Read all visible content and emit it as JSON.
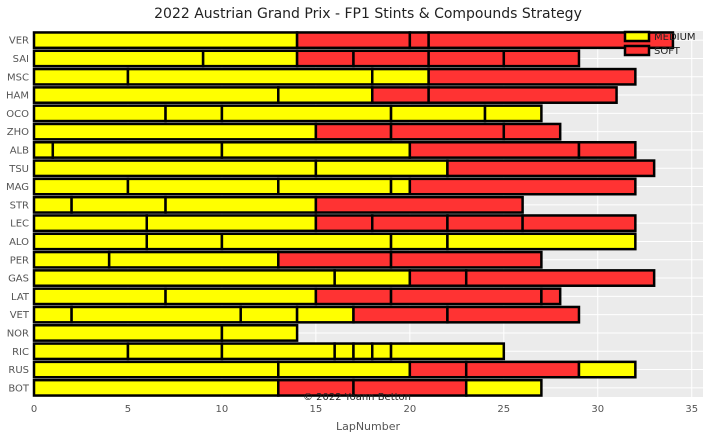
{
  "chart_data": {
    "type": "bar",
    "orientation": "horizontal-stacked",
    "title": "2022 Austrian Grand Prix - FP1 Stints & Compounds Strategy",
    "xlabel": "LapNumber",
    "ylabel": "",
    "xlim": [
      0,
      35.6
    ],
    "xticks": [
      0,
      5,
      10,
      15,
      20,
      25,
      30,
      35
    ],
    "grid": true,
    "legend": {
      "position": "top-right",
      "entries": [
        {
          "label": "MEDIUM",
          "color": "#ffff00"
        },
        {
          "label": "SOFT",
          "color": "#ff3333"
        }
      ]
    },
    "annotation": "© 2022 Yoann Betton",
    "compound_colors": {
      "MEDIUM": "#ffff00",
      "SOFT": "#ff3333"
    },
    "drivers": [
      {
        "name": "VER",
        "stints": [
          {
            "compound": "MEDIUM",
            "laps": 14
          },
          {
            "compound": "SOFT",
            "laps": 6
          },
          {
            "compound": "SOFT",
            "laps": 1
          },
          {
            "compound": "SOFT",
            "laps": 13
          }
        ]
      },
      {
        "name": "SAI",
        "stints": [
          {
            "compound": "MEDIUM",
            "laps": 9
          },
          {
            "compound": "MEDIUM",
            "laps": 5
          },
          {
            "compound": "SOFT",
            "laps": 3
          },
          {
            "compound": "SOFT",
            "laps": 4
          },
          {
            "compound": "SOFT",
            "laps": 4
          },
          {
            "compound": "SOFT",
            "laps": 4
          }
        ]
      },
      {
        "name": "MSC",
        "stints": [
          {
            "compound": "MEDIUM",
            "laps": 5
          },
          {
            "compound": "MEDIUM",
            "laps": 13
          },
          {
            "compound": "MEDIUM",
            "laps": 3
          },
          {
            "compound": "SOFT",
            "laps": 11
          }
        ]
      },
      {
        "name": "HAM",
        "stints": [
          {
            "compound": "MEDIUM",
            "laps": 13
          },
          {
            "compound": "MEDIUM",
            "laps": 5
          },
          {
            "compound": "SOFT",
            "laps": 3
          },
          {
            "compound": "SOFT",
            "laps": 10
          }
        ]
      },
      {
        "name": "OCO",
        "stints": [
          {
            "compound": "MEDIUM",
            "laps": 7
          },
          {
            "compound": "MEDIUM",
            "laps": 3
          },
          {
            "compound": "MEDIUM",
            "laps": 9
          },
          {
            "compound": "MEDIUM",
            "laps": 5
          },
          {
            "compound": "MEDIUM",
            "laps": 3
          }
        ]
      },
      {
        "name": "ZHO",
        "stints": [
          {
            "compound": "MEDIUM",
            "laps": 15
          },
          {
            "compound": "SOFT",
            "laps": 4
          },
          {
            "compound": "SOFT",
            "laps": 6
          },
          {
            "compound": "SOFT",
            "laps": 3
          }
        ]
      },
      {
        "name": "ALB",
        "stints": [
          {
            "compound": "MEDIUM",
            "laps": 1
          },
          {
            "compound": "MEDIUM",
            "laps": 9
          },
          {
            "compound": "MEDIUM",
            "laps": 10
          },
          {
            "compound": "SOFT",
            "laps": 9
          },
          {
            "compound": "SOFT",
            "laps": 3
          }
        ]
      },
      {
        "name": "TSU",
        "stints": [
          {
            "compound": "MEDIUM",
            "laps": 15
          },
          {
            "compound": "MEDIUM",
            "laps": 7
          },
          {
            "compound": "SOFT",
            "laps": 11
          }
        ]
      },
      {
        "name": "MAG",
        "stints": [
          {
            "compound": "MEDIUM",
            "laps": 5
          },
          {
            "compound": "MEDIUM",
            "laps": 8
          },
          {
            "compound": "MEDIUM",
            "laps": 6
          },
          {
            "compound": "MEDIUM",
            "laps": 1
          },
          {
            "compound": "SOFT",
            "laps": 12
          }
        ]
      },
      {
        "name": "STR",
        "stints": [
          {
            "compound": "MEDIUM",
            "laps": 2
          },
          {
            "compound": "MEDIUM",
            "laps": 5
          },
          {
            "compound": "MEDIUM",
            "laps": 8
          },
          {
            "compound": "SOFT",
            "laps": 11
          }
        ]
      },
      {
        "name": "LEC",
        "stints": [
          {
            "compound": "MEDIUM",
            "laps": 6
          },
          {
            "compound": "MEDIUM",
            "laps": 9
          },
          {
            "compound": "SOFT",
            "laps": 3
          },
          {
            "compound": "SOFT",
            "laps": 4
          },
          {
            "compound": "SOFT",
            "laps": 4
          },
          {
            "compound": "SOFT",
            "laps": 6
          }
        ]
      },
      {
        "name": "ALO",
        "stints": [
          {
            "compound": "MEDIUM",
            "laps": 6
          },
          {
            "compound": "MEDIUM",
            "laps": 4
          },
          {
            "compound": "MEDIUM",
            "laps": 9
          },
          {
            "compound": "MEDIUM",
            "laps": 3
          },
          {
            "compound": "MEDIUM",
            "laps": 10
          }
        ]
      },
      {
        "name": "PER",
        "stints": [
          {
            "compound": "MEDIUM",
            "laps": 4
          },
          {
            "compound": "MEDIUM",
            "laps": 9
          },
          {
            "compound": "SOFT",
            "laps": 6
          },
          {
            "compound": "SOFT",
            "laps": 8
          }
        ]
      },
      {
        "name": "GAS",
        "stints": [
          {
            "compound": "MEDIUM",
            "laps": 16
          },
          {
            "compound": "MEDIUM",
            "laps": 4
          },
          {
            "compound": "SOFT",
            "laps": 3
          },
          {
            "compound": "SOFT",
            "laps": 10
          }
        ]
      },
      {
        "name": "LAT",
        "stints": [
          {
            "compound": "MEDIUM",
            "laps": 7
          },
          {
            "compound": "MEDIUM",
            "laps": 8
          },
          {
            "compound": "SOFT",
            "laps": 4
          },
          {
            "compound": "SOFT",
            "laps": 8
          },
          {
            "compound": "SOFT",
            "laps": 1
          }
        ]
      },
      {
        "name": "VET",
        "stints": [
          {
            "compound": "MEDIUM",
            "laps": 2
          },
          {
            "compound": "MEDIUM",
            "laps": 9
          },
          {
            "compound": "MEDIUM",
            "laps": 3
          },
          {
            "compound": "MEDIUM",
            "laps": 3
          },
          {
            "compound": "SOFT",
            "laps": 5
          },
          {
            "compound": "SOFT",
            "laps": 7
          }
        ]
      },
      {
        "name": "NOR",
        "stints": [
          {
            "compound": "MEDIUM",
            "laps": 10
          },
          {
            "compound": "MEDIUM",
            "laps": 4
          }
        ]
      },
      {
        "name": "RIC",
        "stints": [
          {
            "compound": "MEDIUM",
            "laps": 5
          },
          {
            "compound": "MEDIUM",
            "laps": 5
          },
          {
            "compound": "MEDIUM",
            "laps": 6
          },
          {
            "compound": "MEDIUM",
            "laps": 1
          },
          {
            "compound": "MEDIUM",
            "laps": 1
          },
          {
            "compound": "MEDIUM",
            "laps": 1
          },
          {
            "compound": "MEDIUM",
            "laps": 6
          }
        ]
      },
      {
        "name": "RUS",
        "stints": [
          {
            "compound": "MEDIUM",
            "laps": 13
          },
          {
            "compound": "MEDIUM",
            "laps": 7
          },
          {
            "compound": "SOFT",
            "laps": 3
          },
          {
            "compound": "SOFT",
            "laps": 6
          },
          {
            "compound": "MEDIUM",
            "laps": 3
          }
        ]
      },
      {
        "name": "BOT",
        "stints": [
          {
            "compound": "MEDIUM",
            "laps": 13
          },
          {
            "compound": "SOFT",
            "laps": 4
          },
          {
            "compound": "SOFT",
            "laps": 6
          },
          {
            "compound": "MEDIUM",
            "laps": 4
          }
        ]
      }
    ]
  }
}
